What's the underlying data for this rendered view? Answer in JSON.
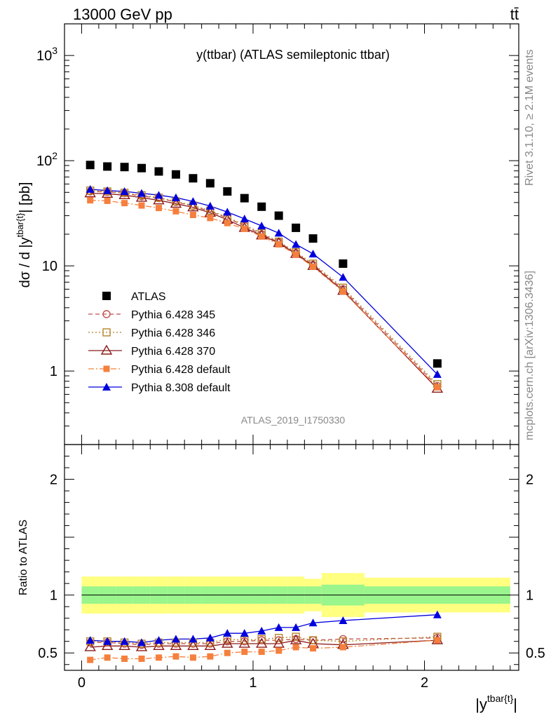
{
  "header": {
    "left": "13000 GeV pp",
    "right": "tt̄"
  },
  "side_labels": {
    "rivet": "Rivet 3.1.10, ≥ 2.1M events",
    "mcplots": "mcplots.cern.ch [arXiv:1306.3436]"
  },
  "watermark": "ATLAS_2019_I1750330",
  "chart_data": [
    {
      "type": "scatter",
      "title": "y(ttbar) (ATLAS semileptonic ttbar)",
      "ylabel": "dσ / d |y^{tbar{t}}| [pb]",
      "yscale": "log",
      "ylim": [
        0.2,
        2000
      ],
      "xlim": [
        -0.1,
        2.55
      ],
      "yticks": [
        "1",
        "10",
        "10^2",
        "10^3"
      ],
      "x": [
        0.05,
        0.15,
        0.25,
        0.35,
        0.45,
        0.55,
        0.65,
        0.75,
        0.85,
        0.95,
        1.05,
        1.15,
        1.25,
        1.35,
        1.525,
        2.075
      ],
      "series": [
        {
          "name": "ATLAS",
          "color": "#000000",
          "marker": "square",
          "line": "none",
          "values": [
            91,
            88,
            87,
            85,
            79,
            74,
            68,
            61,
            51,
            44,
            36.5,
            30,
            23,
            18.2,
            10.5,
            1.18
          ]
        },
        {
          "name": "Pythia 6.428 345",
          "color": "#c0504d",
          "marker": "open-circle",
          "line": "dashed",
          "values": [
            51,
            50.5,
            49,
            46,
            44,
            40.5,
            37,
            33,
            28.5,
            24,
            20,
            16.8,
            13.2,
            10.2,
            6,
            0.72
          ]
        },
        {
          "name": "Pythia 6.428 346",
          "color": "#b5852a",
          "marker": "open-square",
          "line": "dotted",
          "values": [
            52,
            51,
            49.5,
            47,
            44.5,
            41,
            37.5,
            33.5,
            29,
            24.5,
            20.5,
            17,
            13.5,
            10.5,
            6.2,
            0.75
          ]
        },
        {
          "name": "Pythia 6.428 370",
          "color": "#8b1a1a",
          "marker": "open-triangle",
          "line": "solid",
          "values": [
            49,
            48.5,
            47,
            44.5,
            42,
            39,
            36,
            32,
            27.5,
            23,
            19.5,
            16.5,
            13,
            10,
            5.8,
            0.68
          ]
        },
        {
          "name": "Pythia 6.428 default",
          "color": "#f5803e",
          "marker": "square-small",
          "line": "dashdot",
          "values": [
            42,
            41.5,
            39.5,
            37.5,
            35.5,
            33,
            30.5,
            28.5,
            25.5,
            22.5,
            19,
            16,
            12.8,
            9.8,
            5.7,
            0.7
          ]
        },
        {
          "name": "Pythia 8.308 default",
          "color": "#0000dd",
          "marker": "triangle",
          "line": "solid",
          "values": [
            53.5,
            52,
            51,
            49,
            47,
            44.5,
            41,
            37,
            32.5,
            28,
            24,
            20.5,
            16,
            13,
            7.8,
            0.93
          ]
        }
      ]
    },
    {
      "type": "line",
      "ylabel": "Ratio to ATLAS",
      "xlabel": "|y^{tbar{t}}|",
      "ylim": [
        0.35,
        2.3
      ],
      "xlim": [
        -0.1,
        2.55
      ],
      "yticks": [
        "0.5",
        "1",
        "2"
      ],
      "xticks": [
        "0",
        "1",
        "2"
      ],
      "bins": [
        [
          0,
          0.1
        ],
        [
          0.1,
          0.2
        ],
        [
          0.2,
          0.3
        ],
        [
          0.3,
          0.4
        ],
        [
          0.4,
          0.5
        ],
        [
          0.5,
          0.6
        ],
        [
          0.6,
          0.7
        ],
        [
          0.7,
          0.8
        ],
        [
          0.8,
          0.9
        ],
        [
          0.9,
          1.0
        ],
        [
          1.0,
          1.1
        ],
        [
          1.1,
          1.2
        ],
        [
          1.2,
          1.3
        ],
        [
          1.3,
          1.4
        ],
        [
          1.4,
          1.65
        ],
        [
          1.65,
          2.5
        ]
      ],
      "band_stat": [
        0.075,
        0.075,
        0.075,
        0.075,
        0.075,
        0.075,
        0.075,
        0.075,
        0.075,
        0.075,
        0.075,
        0.075,
        0.075,
        0.075,
        0.09,
        0.075
      ],
      "band_total": [
        0.16,
        0.16,
        0.16,
        0.16,
        0.16,
        0.16,
        0.16,
        0.16,
        0.16,
        0.16,
        0.16,
        0.16,
        0.16,
        0.14,
        0.19,
        0.15
      ],
      "series": [
        {
          "name": "Pythia 6.428 345",
          "color": "#c0504d",
          "marker": "open-circle",
          "line": "dashed",
          "values": [
            0.59,
            0.59,
            0.58,
            0.57,
            0.58,
            0.58,
            0.58,
            0.58,
            0.6,
            0.6,
            0.61,
            0.61,
            0.62,
            0.61,
            0.62,
            0.63
          ]
        },
        {
          "name": "Pythia 6.428 346",
          "color": "#b5852a",
          "marker": "open-square",
          "line": "dotted",
          "values": [
            0.6,
            0.6,
            0.59,
            0.58,
            0.59,
            0.59,
            0.59,
            0.59,
            0.62,
            0.61,
            0.62,
            0.63,
            0.64,
            0.61,
            0.6,
            0.64
          ]
        },
        {
          "name": "Pythia 6.428 370",
          "color": "#8b1a1a",
          "marker": "open-triangle",
          "line": "solid",
          "values": [
            0.55,
            0.56,
            0.56,
            0.55,
            0.56,
            0.56,
            0.56,
            0.56,
            0.58,
            0.58,
            0.58,
            0.58,
            0.61,
            0.58,
            0.57,
            0.61
          ]
        },
        {
          "name": "Pythia 6.428 default",
          "color": "#f5803e",
          "marker": "square-small",
          "line": "dashdot",
          "values": [
            0.44,
            0.46,
            0.45,
            0.45,
            0.46,
            0.47,
            0.46,
            0.47,
            0.5,
            0.51,
            0.51,
            0.52,
            0.55,
            0.54,
            0.55,
            0.61
          ]
        },
        {
          "name": "Pythia 8.308 default",
          "color": "#0000dd",
          "marker": "triangle",
          "line": "solid",
          "values": [
            0.61,
            0.6,
            0.6,
            0.59,
            0.61,
            0.62,
            0.62,
            0.63,
            0.67,
            0.67,
            0.69,
            0.72,
            0.72,
            0.76,
            0.78,
            0.83
          ]
        }
      ]
    }
  ]
}
